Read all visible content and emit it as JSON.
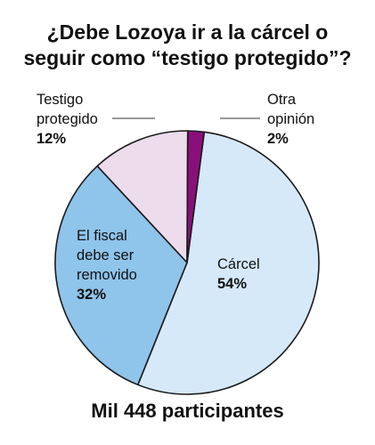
{
  "title": {
    "line1": "¿Debe Lozoya ir a la cárcel o",
    "line2": "seguir como “testigo protegido”?"
  },
  "footer": "Mil 448 participantes",
  "chart_data": {
    "type": "pie",
    "title": "¿Debe Lozoya ir a la cárcel o seguir como “testigo protegido”?",
    "slices": [
      {
        "label": "Cárcel",
        "lines": [
          "Cárcel"
        ],
        "value": 54,
        "pct_label": "54%",
        "color": "#d6e9f8"
      },
      {
        "label": "El fiscal debe ser removido",
        "lines": [
          "El fiscal",
          "debe ser",
          "removido"
        ],
        "value": 32,
        "pct_label": "32%",
        "color": "#8fc4eb"
      },
      {
        "label": "Testigo protegido",
        "lines": [
          "Testigo",
          "protegido"
        ],
        "value": 12,
        "pct_label": "12%",
        "color": "#ecdcec"
      },
      {
        "label": "Otra opinión",
        "lines": [
          "Otra",
          "opinión"
        ],
        "value": 2,
        "pct_label": "2%",
        "color": "#8b0f7a"
      }
    ],
    "stroke_color": "#1a1a1a"
  }
}
